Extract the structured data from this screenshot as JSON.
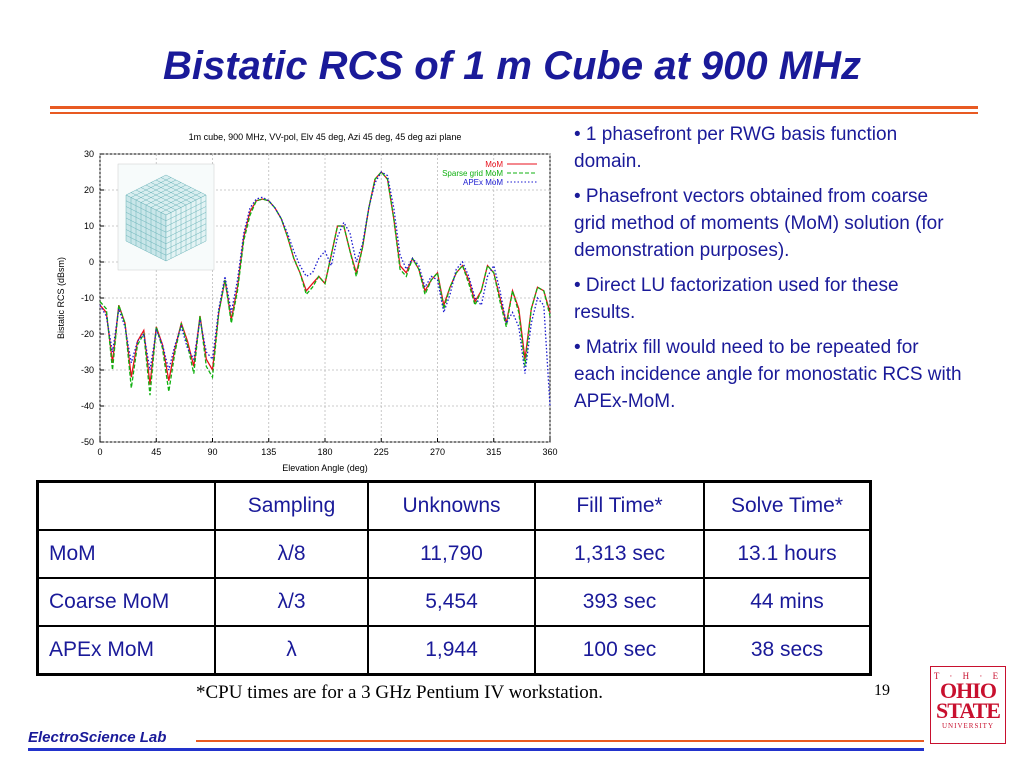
{
  "slide": {
    "title": "Bistatic RCS of 1 m Cube at 900 MHz",
    "page_number": "19",
    "lab_name": "ElectroScience Lab",
    "footnote": "*CPU times are for a 3 GHz Pentium IV workstation.",
    "colors": {
      "title": "#1a1a99",
      "accent": "#e85a22",
      "footer_blue": "#2233cc",
      "logo_red": "#c8102e"
    },
    "logo": {
      "line1": "T · H · E",
      "line2": "OHIO",
      "line3": "STATE",
      "line4": "UNIVERSITY"
    }
  },
  "bullets": [
    "• 1 phasefront per RWG basis function domain.",
    "• Phasefront vectors obtained from coarse grid method of moments (MoM) solution (for demonstration purposes).",
    "• Direct LU factorization used for these results.",
    "• Matrix fill would need to be repeated for each incidence angle for monostatic RCS with APEx-MoM."
  ],
  "table": {
    "headers": [
      "",
      "Sampling",
      "Unknowns",
      "Fill Time*",
      "Solve Time*"
    ],
    "rows": [
      [
        "MoM",
        "λ/8",
        "11,790",
        "1,313 sec",
        "13.1 hours"
      ],
      [
        "Coarse MoM",
        "λ/3",
        "5,454",
        "393 sec",
        "44 mins"
      ],
      [
        "APEx MoM",
        "λ",
        "1,944",
        "100 sec",
        "38 secs"
      ]
    ]
  },
  "chart_data": {
    "type": "line",
    "title": "1m cube, 900 MHz, VV-pol, Elv 45 deg, Azi 45 deg, 45 deg azi plane",
    "xlabel": "Elevation Angle (deg)",
    "ylabel": "Bistatic RCS (dBsm)",
    "xlim": [
      0,
      360
    ],
    "ylim": [
      -50,
      30
    ],
    "xticks": [
      0,
      45,
      90,
      135,
      180,
      225,
      270,
      315,
      360
    ],
    "yticks": [
      -50,
      -40,
      -30,
      -20,
      -10,
      0,
      10,
      20,
      30
    ],
    "grid": true,
    "legend_position": "top-right",
    "inset_image": "cube mesh",
    "series": [
      {
        "name": "MoM",
        "color": "#e8101c",
        "dash": "solid",
        "points": [
          [
            0,
            -12
          ],
          [
            5,
            -14
          ],
          [
            10,
            -28
          ],
          [
            15,
            -12
          ],
          [
            20,
            -17
          ],
          [
            25,
            -32
          ],
          [
            30,
            -22
          ],
          [
            35,
            -19
          ],
          [
            40,
            -34
          ],
          [
            45,
            -18
          ],
          [
            50,
            -23
          ],
          [
            55,
            -33
          ],
          [
            60,
            -24
          ],
          [
            65,
            -17
          ],
          [
            70,
            -22
          ],
          [
            75,
            -29
          ],
          [
            80,
            -15
          ],
          [
            85,
            -27
          ],
          [
            90,
            -30
          ],
          [
            95,
            -14
          ],
          [
            100,
            -5
          ],
          [
            105,
            -16
          ],
          [
            110,
            -7
          ],
          [
            115,
            7
          ],
          [
            120,
            14
          ],
          [
            125,
            17
          ],
          [
            130,
            17.5
          ],
          [
            135,
            17
          ],
          [
            140,
            15
          ],
          [
            145,
            12
          ],
          [
            150,
            7
          ],
          [
            155,
            1
          ],
          [
            160,
            -3
          ],
          [
            165,
            -8
          ],
          [
            170,
            -6
          ],
          [
            175,
            -4
          ],
          [
            180,
            -6
          ],
          [
            185,
            2
          ],
          [
            190,
            10
          ],
          [
            195,
            10
          ],
          [
            200,
            3
          ],
          [
            205,
            -3
          ],
          [
            210,
            4
          ],
          [
            215,
            15
          ],
          [
            220,
            23
          ],
          [
            225,
            25
          ],
          [
            230,
            23
          ],
          [
            235,
            12
          ],
          [
            240,
            -1
          ],
          [
            245,
            -3
          ],
          [
            250,
            1
          ],
          [
            255,
            -2
          ],
          [
            260,
            -8
          ],
          [
            265,
            -5
          ],
          [
            270,
            -3
          ],
          [
            275,
            -12
          ],
          [
            280,
            -7
          ],
          [
            285,
            -3
          ],
          [
            290,
            -1
          ],
          [
            295,
            -5
          ],
          [
            300,
            -11
          ],
          [
            305,
            -8
          ],
          [
            310,
            -1
          ],
          [
            315,
            -3
          ],
          [
            320,
            -10
          ],
          [
            325,
            -17
          ],
          [
            330,
            -8
          ],
          [
            335,
            -13
          ],
          [
            340,
            -27
          ],
          [
            345,
            -13
          ],
          [
            350,
            -7
          ],
          [
            355,
            -8
          ],
          [
            360,
            -14
          ]
        ]
      },
      {
        "name": "Sparse grid MoM",
        "color": "#10b010",
        "dash": "dashed",
        "points": [
          [
            0,
            -11
          ],
          [
            5,
            -13
          ],
          [
            10,
            -30
          ],
          [
            15,
            -12
          ],
          [
            20,
            -17
          ],
          [
            25,
            -35
          ],
          [
            30,
            -23
          ],
          [
            35,
            -20
          ],
          [
            40,
            -37
          ],
          [
            45,
            -18
          ],
          [
            50,
            -24
          ],
          [
            55,
            -36
          ],
          [
            60,
            -25
          ],
          [
            65,
            -17
          ],
          [
            70,
            -23
          ],
          [
            75,
            -31
          ],
          [
            80,
            -15
          ],
          [
            85,
            -29
          ],
          [
            90,
            -32
          ],
          [
            95,
            -14
          ],
          [
            100,
            -5
          ],
          [
            105,
            -17
          ],
          [
            110,
            -8
          ],
          [
            115,
            6
          ],
          [
            120,
            13
          ],
          [
            125,
            17
          ],
          [
            130,
            17.5
          ],
          [
            135,
            17
          ],
          [
            140,
            15
          ],
          [
            145,
            12
          ],
          [
            150,
            7
          ],
          [
            155,
            1
          ],
          [
            160,
            -3
          ],
          [
            165,
            -9
          ],
          [
            170,
            -7
          ],
          [
            175,
            -4
          ],
          [
            180,
            -6
          ],
          [
            185,
            2
          ],
          [
            190,
            10
          ],
          [
            195,
            10
          ],
          [
            200,
            3
          ],
          [
            205,
            -4
          ],
          [
            210,
            4
          ],
          [
            215,
            15
          ],
          [
            220,
            23
          ],
          [
            225,
            25
          ],
          [
            230,
            23
          ],
          [
            235,
            12
          ],
          [
            240,
            -2
          ],
          [
            245,
            -4
          ],
          [
            250,
            1
          ],
          [
            255,
            -2
          ],
          [
            260,
            -9
          ],
          [
            265,
            -5
          ],
          [
            270,
            -3
          ],
          [
            275,
            -13
          ],
          [
            280,
            -7
          ],
          [
            285,
            -3
          ],
          [
            290,
            -1
          ],
          [
            295,
            -6
          ],
          [
            300,
            -12
          ],
          [
            305,
            -8
          ],
          [
            310,
            -1
          ],
          [
            315,
            -3
          ],
          [
            320,
            -11
          ],
          [
            325,
            -18
          ],
          [
            330,
            -8
          ],
          [
            335,
            -14
          ],
          [
            340,
            -29
          ],
          [
            345,
            -13
          ],
          [
            350,
            -7
          ],
          [
            355,
            -8
          ],
          [
            360,
            -15
          ]
        ]
      },
      {
        "name": "APEx MoM",
        "color": "#1a1ad0",
        "dash": "dotted",
        "points": [
          [
            0,
            -12
          ],
          [
            5,
            -15
          ],
          [
            10,
            -25
          ],
          [
            15,
            -13
          ],
          [
            20,
            -18
          ],
          [
            25,
            -28
          ],
          [
            30,
            -22
          ],
          [
            35,
            -20
          ],
          [
            40,
            -30
          ],
          [
            45,
            -19
          ],
          [
            50,
            -23
          ],
          [
            55,
            -30
          ],
          [
            60,
            -23
          ],
          [
            65,
            -18
          ],
          [
            70,
            -24
          ],
          [
            75,
            -27
          ],
          [
            80,
            -16
          ],
          [
            85,
            -25
          ],
          [
            90,
            -27
          ],
          [
            95,
            -13
          ],
          [
            100,
            -4
          ],
          [
            105,
            -14
          ],
          [
            110,
            -5
          ],
          [
            115,
            8
          ],
          [
            120,
            15
          ],
          [
            125,
            17.5
          ],
          [
            130,
            18
          ],
          [
            135,
            17
          ],
          [
            140,
            15
          ],
          [
            145,
            12
          ],
          [
            150,
            8
          ],
          [
            155,
            3
          ],
          [
            160,
            -1
          ],
          [
            165,
            -4
          ],
          [
            170,
            -3
          ],
          [
            175,
            1
          ],
          [
            180,
            3
          ],
          [
            185,
            -1
          ],
          [
            190,
            7
          ],
          [
            195,
            11
          ],
          [
            200,
            8
          ],
          [
            205,
            0
          ],
          [
            210,
            5
          ],
          [
            215,
            15
          ],
          [
            220,
            22
          ],
          [
            225,
            25
          ],
          [
            230,
            24
          ],
          [
            235,
            15
          ],
          [
            240,
            2
          ],
          [
            245,
            -2
          ],
          [
            250,
            1
          ],
          [
            255,
            -1
          ],
          [
            260,
            -7
          ],
          [
            265,
            -4
          ],
          [
            270,
            -5
          ],
          [
            275,
            -14
          ],
          [
            280,
            -9
          ],
          [
            285,
            -2
          ],
          [
            290,
            0
          ],
          [
            295,
            -4
          ],
          [
            300,
            -10
          ],
          [
            305,
            -12
          ],
          [
            310,
            -4
          ],
          [
            315,
            -1
          ],
          [
            320,
            -8
          ],
          [
            325,
            -17
          ],
          [
            330,
            -14
          ],
          [
            335,
            -18
          ],
          [
            340,
            -31
          ],
          [
            345,
            -17
          ],
          [
            350,
            -10
          ],
          [
            355,
            -12
          ],
          [
            360,
            -40
          ]
        ]
      }
    ]
  }
}
